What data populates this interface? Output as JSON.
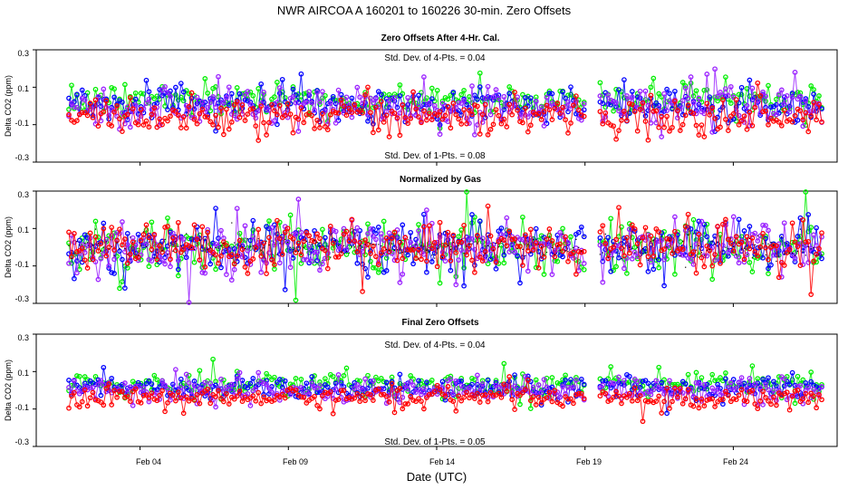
{
  "figure": {
    "title": "NWR   AIRCOA A   160201 to 160226   30-min. Zero Offsets",
    "xlabel": "Date (UTC)"
  },
  "colors": {
    "green": "#00ee00",
    "blue": "#0000ff",
    "red": "#ff0000",
    "purple": "#9a20ff",
    "black": "#000000"
  },
  "chart_data": [
    {
      "type": "scatter",
      "title": "Zero Offsets After 4-Hr. Cal.",
      "ylabel": "Delta CO2 (ppm)",
      "ylim": [
        -0.3,
        0.3
      ],
      "yticks": [
        "-0.3",
        "-0.1",
        "0.1",
        "0.3"
      ],
      "xlim": [
        0.5,
        27.5
      ],
      "xticks": [
        {
          "value": 4,
          "label": "Feb 04"
        },
        {
          "value": 9,
          "label": "Feb 09"
        },
        {
          "value": 14,
          "label": "Feb 14"
        },
        {
          "value": 19,
          "label": "Feb 19"
        },
        {
          "value": 24,
          "label": "Feb 24"
        }
      ],
      "annotations": [
        "Std. Dev. of 4-Pts. =  0.04",
        "Std. Dev. of 1-Pts. =  0.08"
      ],
      "series": [
        {
          "name": "green",
          "color": "green",
          "mean": 0.03,
          "sd": 0.04
        },
        {
          "name": "blue",
          "color": "blue",
          "mean": 0.0,
          "sd": 0.05
        },
        {
          "name": "purple",
          "color": "purple",
          "mean": -0.01,
          "sd": 0.05
        },
        {
          "name": "red",
          "color": "red",
          "mean": -0.05,
          "sd": 0.05
        }
      ],
      "x_start": 1.6,
      "x_end": 27.0,
      "gap": [
        19.0,
        19.5
      ]
    },
    {
      "type": "scatter",
      "title": "Normalized by Gas",
      "ylabel": "Delta CO2 (ppm)",
      "ylim": [
        -0.3,
        0.3
      ],
      "yticks": [
        "-0.3",
        "-0.1",
        "0.1",
        "0.3"
      ],
      "xlim": [
        0.5,
        27.5
      ],
      "xticks": [
        {
          "value": 4,
          "label": "Feb 04"
        },
        {
          "value": 9,
          "label": "Feb 09"
        },
        {
          "value": 14,
          "label": "Feb 14"
        },
        {
          "value": 19,
          "label": "Feb 19"
        },
        {
          "value": 24,
          "label": "Feb 24"
        }
      ],
      "series": [
        {
          "name": "green",
          "color": "green",
          "mean": 0.0,
          "sd": 0.07
        },
        {
          "name": "blue",
          "color": "blue",
          "mean": 0.0,
          "sd": 0.07
        },
        {
          "name": "purple",
          "color": "purple",
          "mean": 0.0,
          "sd": 0.07
        },
        {
          "name": "red",
          "color": "red",
          "mean": 0.0,
          "sd": 0.07
        },
        {
          "name": "black",
          "color": "black",
          "mean": 0.0,
          "sd": 0.03
        }
      ],
      "x_start": 1.6,
      "x_end": 27.0,
      "gap": [
        19.0,
        19.5
      ]
    },
    {
      "type": "scatter",
      "title": "Final Zero Offsets",
      "ylabel": "Delta CO2 (ppm)",
      "ylim": [
        -0.3,
        0.3
      ],
      "yticks": [
        "-0.3",
        "-0.1",
        "0.1",
        "0.3"
      ],
      "xlim": [
        0.5,
        27.5
      ],
      "xticks": [
        {
          "value": 4,
          "label": "Feb 04"
        },
        {
          "value": 9,
          "label": "Feb 09"
        },
        {
          "value": 14,
          "label": "Feb 14"
        },
        {
          "value": 19,
          "label": "Feb 19"
        },
        {
          "value": 24,
          "label": "Feb 24"
        }
      ],
      "annotations": [
        "Std. Dev. of 4-Pts. =  0.04",
        "Std. Dev. of 1-Pts. =  0.05"
      ],
      "series": [
        {
          "name": "green",
          "color": "green",
          "mean": 0.04,
          "sd": 0.03
        },
        {
          "name": "blue",
          "color": "blue",
          "mean": 0.01,
          "sd": 0.03
        },
        {
          "name": "purple",
          "color": "purple",
          "mean": 0.0,
          "sd": 0.03
        },
        {
          "name": "red",
          "color": "red",
          "mean": -0.04,
          "sd": 0.03
        }
      ],
      "x_start": 1.6,
      "x_end": 27.0,
      "gap": [
        19.0,
        19.5
      ]
    }
  ]
}
